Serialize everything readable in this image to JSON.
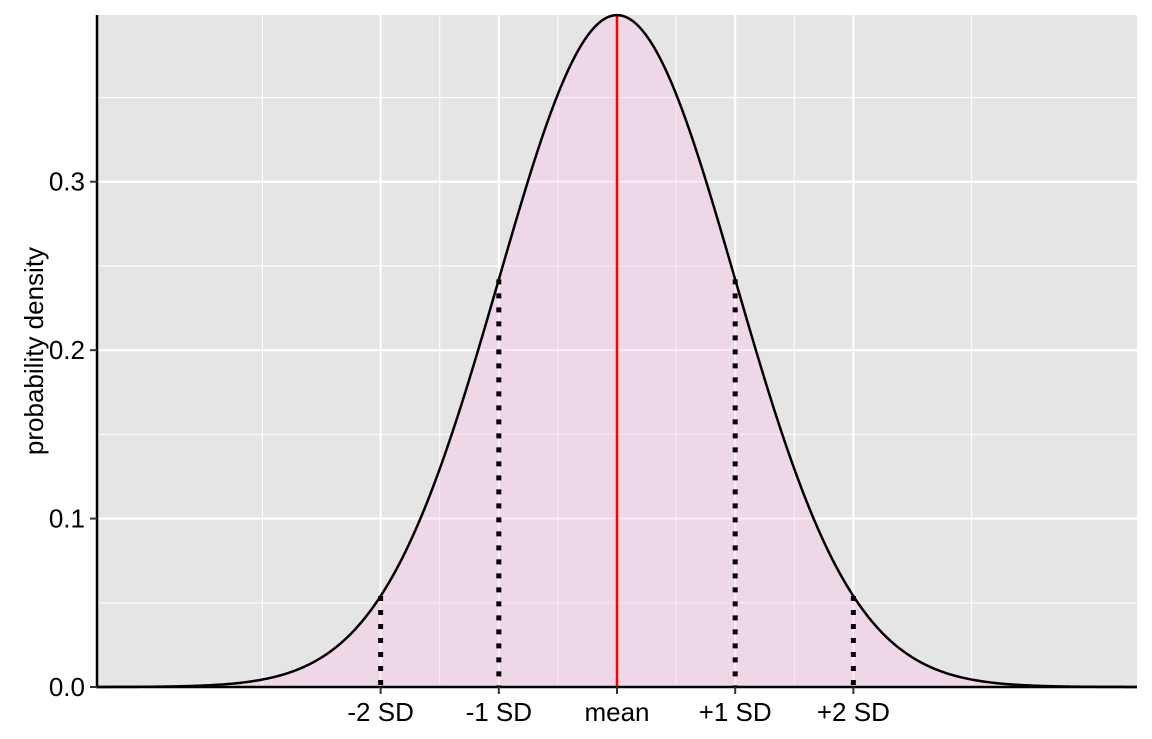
{
  "chart_data": {
    "type": "area",
    "title": "",
    "xlabel": "",
    "ylabel": "probability density",
    "distribution": "normal",
    "mean": 0,
    "sd": 1,
    "xlim": [
      -4.4,
      4.4
    ],
    "ylim": [
      0,
      0.399
    ],
    "x_ticks": [
      {
        "x": -2,
        "label": "-2 SD"
      },
      {
        "x": -1,
        "label": "-1 SD"
      },
      {
        "x": 0,
        "label": "mean"
      },
      {
        "x": 1,
        "label": "+1 SD"
      },
      {
        "x": 2,
        "label": "+2 SD"
      }
    ],
    "y_ticks": [
      {
        "y": 0.0,
        "label": "0.0"
      },
      {
        "y": 0.1,
        "label": "0.1"
      },
      {
        "y": 0.2,
        "label": "0.2"
      },
      {
        "y": 0.3,
        "label": "0.3"
      }
    ],
    "x_minor_gridlines": [
      -3,
      3
    ],
    "y_minor_gridlines": [
      0.05,
      0.15,
      0.25,
      0.35
    ],
    "mean_line": {
      "x": 0,
      "color": "#ff0000"
    },
    "sd_markers": [
      {
        "x": -2,
        "y_top": 0.054
      },
      {
        "x": -1,
        "y_top": 0.242
      },
      {
        "x": 1,
        "y_top": 0.242
      },
      {
        "x": 2,
        "y_top": 0.054
      }
    ],
    "grid": true,
    "legend": "none",
    "colors": {
      "panel_background": "#e5e5e5",
      "gridline": "#ffffff",
      "fill": "#ffc0eb",
      "curve": "#000000",
      "mean_line": "#ff0000",
      "sd_markers": "#000000"
    }
  }
}
